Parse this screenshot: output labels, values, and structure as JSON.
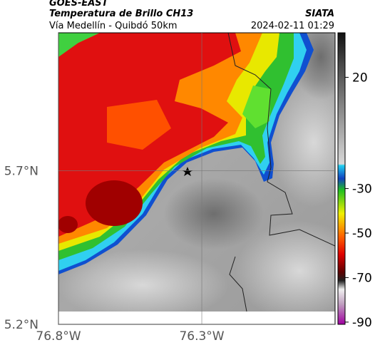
{
  "header": {
    "source": "GOES-EAST",
    "title": "Temperatura de Brillo CH13",
    "brand": "SIATA",
    "subtitle": "Vía Medellín - Quibdó 50km",
    "timestamp": "2024-02-11 01:29"
  },
  "map": {
    "xlim": [
      -76.8,
      -75.835
    ],
    "ylim": [
      5.2,
      6.15
    ],
    "xticks": [
      {
        "value": -76.8,
        "label": "76.8°W"
      },
      {
        "value": -76.3,
        "label": "76.3°W"
      }
    ],
    "yticks": [
      {
        "value": 5.2,
        "label": "5.2°N"
      },
      {
        "value": 5.7,
        "label": "5.7°N"
      }
    ]
  },
  "colorbar": {
    "lim": [
      -91,
      40
    ],
    "ticks": [
      20,
      -30,
      -50,
      -70,
      -90
    ]
  }
}
